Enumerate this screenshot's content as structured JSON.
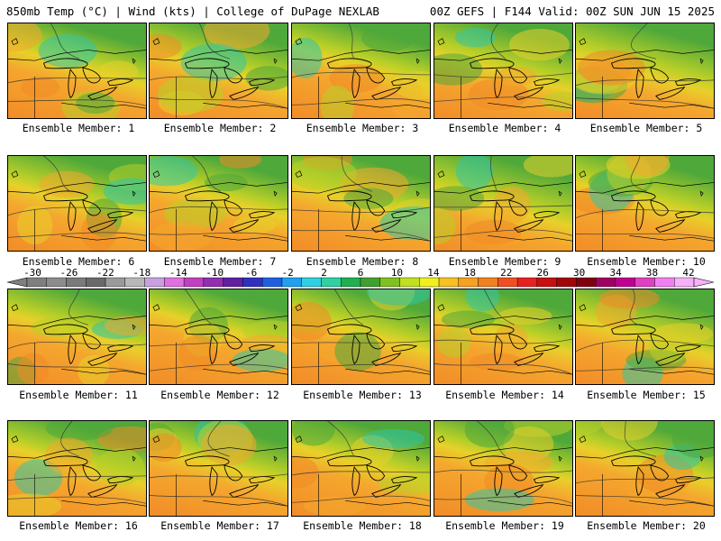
{
  "header": {
    "left": "850mb Temp (°C) | Wind (kts) | College of DuPage NEXLAB",
    "right": "00Z GEFS | F144 Valid: 00Z SUN JUN 15 2025"
  },
  "panels": [
    {
      "label": "Ensemble Member: 1",
      "temp_level": 0.55
    },
    {
      "label": "Ensemble Member: 2",
      "temp_level": 0.45
    },
    {
      "label": "Ensemble Member: 3",
      "temp_level": 0.55
    },
    {
      "label": "Ensemble Member: 4",
      "temp_level": 0.4
    },
    {
      "label": "Ensemble Member: 5",
      "temp_level": 0.35
    },
    {
      "label": "Ensemble Member: 6",
      "temp_level": 0.45
    },
    {
      "label": "Ensemble Member: 7",
      "temp_level": 0.55
    },
    {
      "label": "Ensemble Member: 8",
      "temp_level": 0.45
    },
    {
      "label": "Ensemble Member: 9",
      "temp_level": 0.3
    },
    {
      "label": "Ensemble Member: 10",
      "temp_level": 0.45
    },
    {
      "label": "Ensemble Member: 11",
      "temp_level": 0.55
    },
    {
      "label": "Ensemble Member: 12",
      "temp_level": 0.65
    },
    {
      "label": "Ensemble Member: 13",
      "temp_level": 0.55
    },
    {
      "label": "Ensemble Member: 14",
      "temp_level": 0.5
    },
    {
      "label": "Ensemble Member: 15",
      "temp_level": 0.4
    },
    {
      "label": "Ensemble Member: 16",
      "temp_level": 0.5
    },
    {
      "label": "Ensemble Member: 17",
      "temp_level": 0.5
    },
    {
      "label": "Ensemble Member: 18",
      "temp_level": 0.55
    },
    {
      "label": "Ensemble Member: 19",
      "temp_level": 0.6
    },
    {
      "label": "Ensemble Member: 20",
      "temp_level": 0.55
    }
  ],
  "colorbar": {
    "labels": [
      "-30",
      "-26",
      "-22",
      "-18",
      "-14",
      "-10",
      "-6",
      "-2",
      "2",
      "6",
      "10",
      "14",
      "18",
      "22",
      "26",
      "30",
      "34",
      "38",
      "42"
    ],
    "colors": [
      "#7f7f7f",
      "#8c8c8c",
      "#7a7a7a",
      "#6a6a6a",
      "#9a9a9a",
      "#b8b8b8",
      "#c8a0e0",
      "#e070e0",
      "#c040c0",
      "#9030b0",
      "#6020a0",
      "#3030c0",
      "#2060e0",
      "#20a0f0",
      "#30d0e0",
      "#30d0a0",
      "#20b050",
      "#40a030",
      "#80c020",
      "#c0e020",
      "#f0f020",
      "#f8c020",
      "#f8a020",
      "#f08020",
      "#f05020",
      "#e82020",
      "#c81010",
      "#a00808",
      "#800010",
      "#a00060",
      "#c00090",
      "#e040c0",
      "#f080f0",
      "#f8b0f8"
    ]
  }
}
